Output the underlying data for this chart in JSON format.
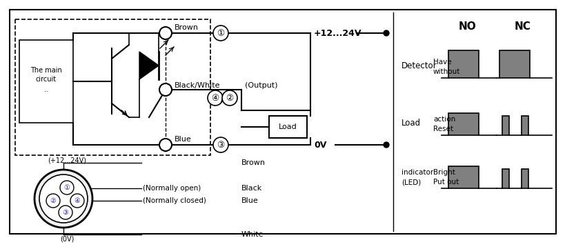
{
  "bg_color": "#ffffff",
  "gray": "#808080",
  "labels": {
    "plus": "+12...24V",
    "zero": "0V",
    "brown": "Brown",
    "black_white": "Black/White",
    "blue": "Blue",
    "output": "(Output)",
    "load": "Load",
    "main_circuit_1": "The main",
    "main_circuit_2": "circuit",
    "main_circuit_3": "..",
    "no": "NO",
    "nc": "NC",
    "detector": "Detector",
    "have": "Have",
    "without": "without",
    "load_label": "Load",
    "action": "action",
    "reset": "Reset",
    "indicator1": "indicator",
    "indicator2": "(LED)",
    "bright": "Bright",
    "put_out": "Put out",
    "plus12": "(+12...24V)",
    "norm_open": "(Normally open)",
    "norm_closed": "(Normally closed)",
    "zero_v": "(0V)",
    "brown_pin": "Brown",
    "black_pin": "Black",
    "blue_pin": "Blue",
    "white_pin": "White"
  }
}
